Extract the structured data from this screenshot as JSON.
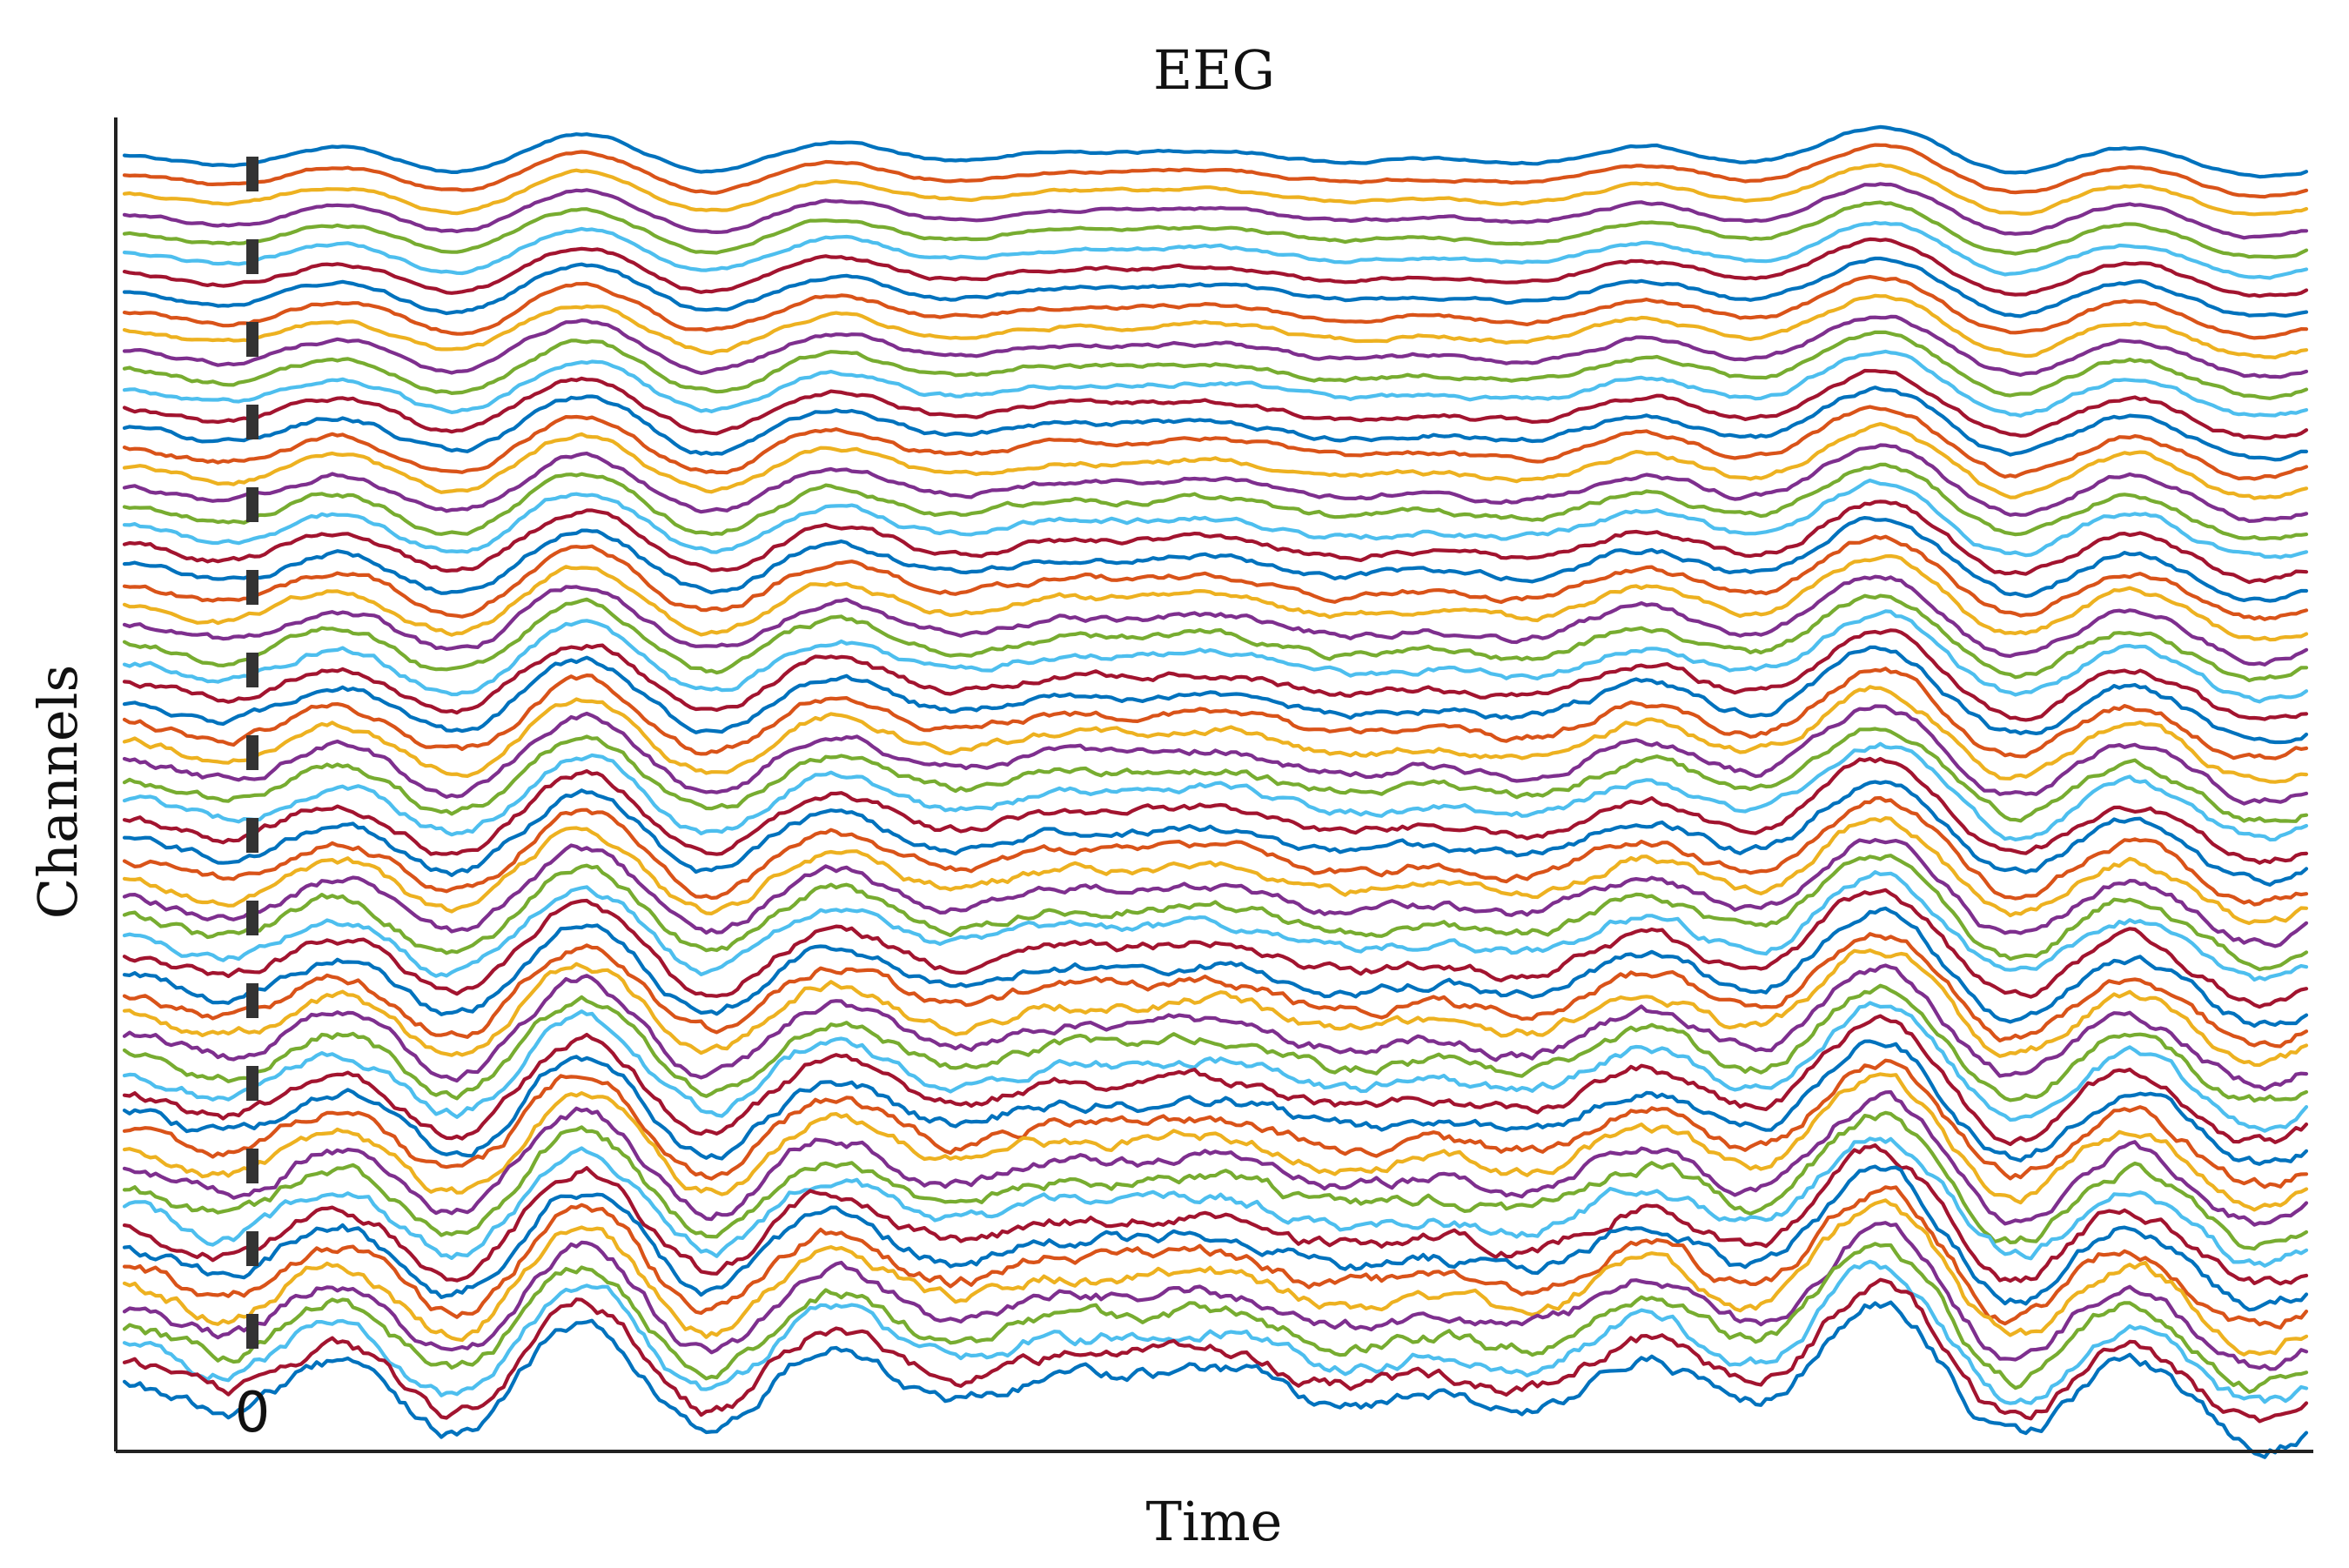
{
  "chart_data": {
    "type": "line",
    "title": "EEG",
    "xlabel": "Time",
    "ylabel": "Channels",
    "grid": false,
    "legend": "none",
    "axes": {
      "left": true,
      "bottom": true,
      "top": false,
      "right": false
    },
    "channel_count": 64,
    "onset_marker": {
      "label": "0",
      "style": "dashed",
      "color": "#333333"
    },
    "series_colors": [
      "#0072BD",
      "#D95319",
      "#EDB120",
      "#7E2F8E",
      "#77AC30",
      "#4DBEEE",
      "#A2142F"
    ]
  }
}
